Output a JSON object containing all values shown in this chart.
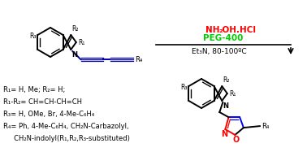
{
  "background_color": "#ffffff",
  "reagent_color1": "#ff0000",
  "reagent_color2": "#00cc00",
  "reagent_color3": "#000000",
  "indole_color": "#000000",
  "isoxazole_ring_color": "#ff0000",
  "isoxazole_double_color": "#0000ff",
  "diyne_color": "#0000aa",
  "substituents_text": [
    "R₁= H, Me; R₂= H;",
    "R₁-R₂= CH=CH-CH=CH",
    "R₃= H, OMe, Br, 4-Me-C₆H₄",
    "R₄= Ph, 4-Me-C₆H₄, CH₂N-Carbazolyl,",
    "     CH₂N-indolyl(R₁,R₂,R₃-substituted)"
  ]
}
